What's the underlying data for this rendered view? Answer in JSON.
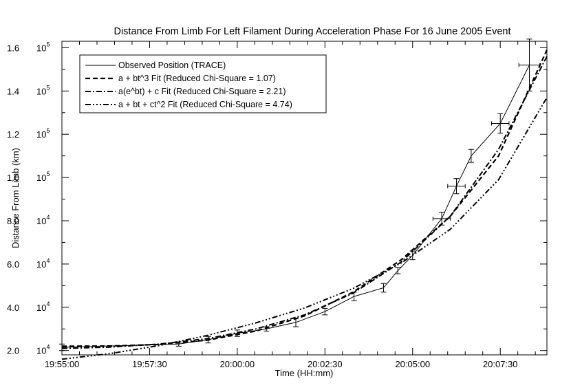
{
  "chart_data": {
    "type": "line",
    "title": "Distance From Limb For Left Filament During Acceleration Phase For 16 June 2005 Event",
    "xlabel": "Time (HH:mm)",
    "ylabel": "Distance From Limb (km)",
    "x_tick_labels": [
      "19:55:00",
      "19:57:30",
      "20:00:00",
      "20:02:30",
      "20:05:00",
      "20:07:30"
    ],
    "x_tick_minutes": [
      0,
      2.5,
      5,
      7.5,
      10,
      12.5
    ],
    "xlim": [
      "19:55:00",
      "20:08:50"
    ],
    "xlim_minutes": [
      0,
      13.83
    ],
    "y_ticks": [
      {
        "mantissa": "2.0",
        "exp_base": "10",
        "exp_power": "4",
        "value": 20000
      },
      {
        "mantissa": "4.0",
        "exp_base": "10",
        "exp_power": "4",
        "value": 40000
      },
      {
        "mantissa": "6.0",
        "exp_base": "10",
        "exp_power": "4",
        "value": 60000
      },
      {
        "mantissa": "8.0",
        "exp_base": "10",
        "exp_power": "4",
        "value": 80000
      },
      {
        "mantissa": "1.0",
        "exp_base": "10",
        "exp_power": "5",
        "value": 100000
      },
      {
        "mantissa": "1.2",
        "exp_base": "10",
        "exp_power": "5",
        "value": 120000
      },
      {
        "mantissa": "1.4",
        "exp_base": "10",
        "exp_power": "5",
        "value": 140000
      },
      {
        "mantissa": "1.6",
        "exp_base": "10",
        "exp_power": "5",
        "value": 160000
      }
    ],
    "ylim": [
      18000,
      163000
    ],
    "legend_position": "top-left",
    "series": [
      {
        "name": "Observed Position (TRACE)",
        "style": "solid",
        "x": [
          0,
          3.33,
          4.17,
          5.0,
          5.83,
          6.67,
          7.5,
          8.33,
          9.17,
          9.58,
          10.0,
          10.83,
          11.25,
          11.67,
          12.5,
          13.33
        ],
        "y": [
          21500,
          23000,
          25000,
          28000,
          30000,
          33000,
          38000,
          45000,
          49000,
          57000,
          64000,
          81000,
          96000,
          110000,
          125000,
          152000
        ],
        "xerr": [
          0,
          0,
          0,
          0,
          0,
          0,
          0,
          0,
          0,
          0,
          0,
          0.25,
          0.25,
          0,
          0.25,
          0.3
        ],
        "yerr": [
          1500,
          1000,
          1500,
          1500,
          1000,
          2000,
          1500,
          2000,
          2000,
          1500,
          2000,
          3000,
          3500,
          3000,
          4500,
          12000
        ]
      },
      {
        "name": "a + bt^3 Fit (Reduced Chi-Square = 1.07)",
        "style": "dashed",
        "x": [
          0,
          1.38,
          2.77,
          4.15,
          5.53,
          6.92,
          8.3,
          9.68,
          11.07,
          12.45,
          13.83
        ],
        "y": [
          22000,
          22100,
          22800,
          24800,
          29000,
          36000,
          47000,
          62000,
          82000,
          110000,
          159000
        ]
      },
      {
        "name": "a(e^bt) + c Fit (Reduced Chi-Square = 2.21)",
        "style": "dash-dot",
        "x": [
          0,
          1.38,
          2.77,
          4.15,
          5.53,
          6.92,
          8.3,
          9.68,
          11.07,
          12.45,
          13.83
        ],
        "y": [
          21000,
          21600,
          23000,
          25500,
          30000,
          36500,
          46500,
          61000,
          82000,
          113000,
          156000
        ]
      },
      {
        "name": "a + bt + ct^2 Fit (Reduced Chi-Square = 4.74)",
        "style": "dash-dot-dot-dot",
        "x": [
          0,
          1.38,
          2.77,
          4.15,
          5.53,
          6.92,
          8.3,
          9.68,
          11.07,
          12.45,
          13.83
        ],
        "y": [
          16000,
          18600,
          22300,
          27000,
          32800,
          39700,
          48700,
          60500,
          76000,
          99000,
          137000
        ]
      }
    ]
  }
}
